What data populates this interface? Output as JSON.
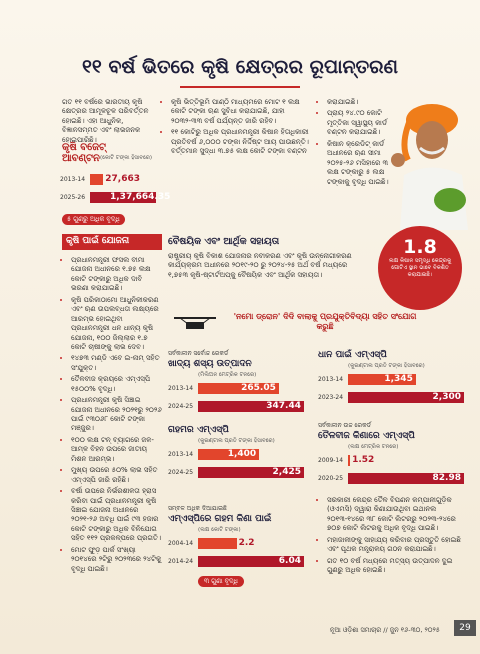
{
  "header": {
    "title": "୧୧ ବର୍ଷ ଭିତରେ କୃଷି କ୍ଷେତ୍ରର ରୂପାନ୍ତରଣ"
  },
  "intro": "ଗତ ୧୧ ବର୍ଷରେ ଭାରତୀୟ କୃଷି କ୍ଷେତ୍ରର ଆମୂଳଚୂଳ ପରିବର୍ତ୍ତନ ହୋଇଛି। ଏହା ଆଧୁନିକ, ବିଜ୍ଞାନସମ୍ମତ ଏବଂ ଲାଭଜନକ ହୋଇପାରିଛି।",
  "budget": {
    "title": "କୃଷି ବଜେଟ୍ ଆବଣ୍ଟନ",
    "unit": "(କୋଟି ଟଙ୍କା ହିସାବରେ)",
    "categories": [
      "2013-14",
      "2025-26"
    ],
    "values": [
      27663,
      137664.35
    ],
    "value_labels": [
      "27,663",
      "1,37,664.35"
    ],
    "note": "୫ ଗୁଣରୁ ଅଧିକ ବୃଦ୍ଧି"
  },
  "col2": [
    "କୃଷି ଭିତ୍ତିଭୂମି ପାଣ୍ଠି ମାଧ୍ୟମରେ ମୋଟ ୧ ଲକ୍ଷ କୋଟି ଟଙ୍କା ଋଣ ସୁବିଧା କରାଯାଇଛି, ଯାହା ୨୦୩୨-୩୩ ବର୍ଷ ପର୍ଯ୍ୟନ୍ତ ଜାରି ରହିବ।",
    "୧୧ କୋଟିରୁ ଅଧିକ ପ୍ରଧାନମନ୍ତ୍ରୀ କିଷାନ ହିତାଧିକାରୀ ପ୍ରତିବର୍ଷ ୬,୦୦୦ ଟଙ୍କା ନିର୍ଦ୍ଦିଷ୍ଟ ଆୟ ପାଉଛନ୍ତି। ବର୍ତ୍ତମାନ ସୁଦ୍ଧା ୩.୭୫ ଲକ୍ଷ କୋଟି ଟଙ୍କା ବଣ୍ଟନ"
  ],
  "col3": [
    "କରାଯାଇଛି।",
    "ପ୍ରାୟ ୨୪.୯୦ କୋଟି ମୃତ୍ତିକା ସ୍ୱାସ୍ଥ୍ୟ କାର୍ଡ ବଣ୍ଟନ କରାଯାଇଛି।",
    "କିଷାନ କ୍ରେଡିଟ୍ କାର୍ଡ ଅଧୀନରେ ଋଣ ସୀମା ୨୦୨୫-୨୬ ମସିହାରେ ୩ ଲକ୍ଷ ଟଙ୍କାରୁ ୫ ଲକ୍ଷ ଟଙ୍କାକୁ ବୃଦ୍ଧି ପାଇଛି।"
  ],
  "schemes": {
    "title": "କୃଷି ପାଇଁ ଯୋଜନା",
    "items": [
      "ପ୍ରଧାନମନ୍ତ୍ରୀ ଫସଲ ବୀମା ଯୋଜନା ଅଧୀନରେ ୧.୭୫ ଲକ୍ଷ କୋଟି ଟଙ୍କାରୁ ଅଧିକ ଦାବି ଭରଣା କରାଯାଇଛି।",
      "କୃଷି ପରିକାଠାମୋ ଆଧୁନିକୀକରଣ ଏବଂ ଋଣ ଉପଲବ୍ଧତା ଲକ୍ଷ୍ୟରେ ଆରମ୍ଭ ହୋଇଥିବା ପ୍ରଧାନମନ୍ତ୍ରୀ ଧନ ଧାନ୍ୟ କୃଷି ଯୋଜନା, ୧୦୦ ଜିଲ୍ଲାର ୧.୭ କୋଟି ଚାଷୀଙ୍କୁ ଲାଭ ଦେବ।",
      "୧୪୭୩ ମଣ୍ଡି ଏବେ ଇ-ନାମ୍ ସହିତ ସଂଯୁକ୍ତ।",
      "ତୈଳବୀଜ କ୍ରୟରେ ଏମ୍‌ଏସ୍‌ପି ୧୫୦୦% ବୃଦ୍ଧି।",
      "ପ୍ରଧାନମନ୍ତ୍ରୀ କୃଷି ସିଞ୍ଚାଇ ଯୋଜନା ଅଧୀନରେ ୨୦୨୧ରୁ ୨୦୨୬ ପାଇଁ ୯୩୦୬୮ କୋଟି ଟଙ୍କା ମଞ୍ଜୁର।",
      "୧୦୦ ଲକ୍ଷ ଟନ୍ ବ୍ୟାଗରେ ଜଳ-ଆମ୍ଳ ବିହନ ଉପରେ ଜାତୀୟ ମିଶନ ଆରମ୍ଭ।",
      "ମୁଖ୍ୟ ଉପରେ ୫୦% ଲାଭ ସହିତ ଏମ୍‌ଏସ୍‌ପି ଜାରି ରହିଛି।",
      "ବର୍ଷା ଉପରେ ନିର୍ଭରଶୀଳତା ହ୍ରାସ କରିବା ପାଇଁ ପ୍ରଧାନମନ୍ତ୍ରୀ କୃଷି ସିଞ୍ଚାଇ ଯୋଜନା ଅଧୀନରେ ୨୦୨୧-୨୬ ଅବଧି ପାଇଁ ୯୩ ହଜାର କୋଟି ଟଙ୍କାରୁ ଅଧିକ ବିନିଯୋଗ ସହିତ ୧୧୨ ପ୍ରକଳ୍ପରେ ପ୍ରଗତି।",
      "ମୋଟ ଫୁଡ଼ ପାର୍କ ସଂଖ୍ୟା ୨୦୧୪ରେ ୨ଟିରୁ ୨୦୨୩ରେ ୨୪ଟିକୁ ବୃଦ୍ଧି ପାଇଛି।"
    ]
  },
  "support": {
    "title": "ବୈଷୟିକ ଏବଂ ଆର୍ଥିକ ସହାୟତା",
    "text": "ରାଷ୍ଟ୍ରୀୟ କୃଷି ବିକାଶ ଯୋଜନାର ନବୀକରଣ ଏବଂ କୃଷି ଉନ୍ନୋଗୀକରଣ କାର୍ଯ୍ୟକ୍ରମ ଅଧୀନରେ ୨୦୧୯-୨୦ ରୁ ୨୦୨୪-୨୫ ଅର୍ଥ ବର୍ଷ ମଧ୍ୟରେ ୧,୭୫୩ କୃଷି-ଷ୍ଟାର୍ଟଅପ୍‌କୁ ବୈଷୟିକ ଏବଂ ଆର୍ଥିକ ସହାୟତା।",
    "highlight": "1.8",
    "highlight_text": "ଲକ୍ଷ କିଷାନ ସମୃଦ୍ଧି କେନ୍ଦ୍ରକୁ ଗୋଟିଏ ସ୍ଥାନ ଭାବେ ବିକଶିତ କରାଯାଇଛି।"
  },
  "drone": "'ନମୋ ଡ୍ରୋନ' ଦିଦି ବାଲାକୁ ପ୍ରଯୁକ୍ତିବିଦ୍ୟା ସହିତ ସଂଯୋଗ କରୁଛି",
  "charts": [
    {
      "pretitle": "ସର୍ବକାଳୀନ ସର୍ବୋଚ୍ଚ ରେକର୍ଡ",
      "title": "ଖାଦ୍ୟ ଶସ୍ୟ ଉତ୍ପାଦନ",
      "unit": "(ମିଲିଅନ ମେଟ୍ରିକ ଟନରେ)",
      "categories": [
        "2013-14",
        "2024-25"
      ],
      "values": [
        265.05,
        347.44
      ],
      "value_labels": [
        "265.05",
        "347.44"
      ]
    },
    {
      "title": "ଧାନ ପାଇଁ ଏମ୍‌ଏସ୍‌ପି",
      "unit": "(କୁଇଣ୍ଟାଲ ପ୍ରତି ଟଙ୍କା ହିସାବରେ)",
      "categories": [
        "2013-14",
        "2023-24"
      ],
      "values": [
        1345,
        2300
      ],
      "value_labels": [
        "1,345",
        "2,300"
      ]
    },
    {
      "title": "ଗହମର ଏମ୍‌ଏସ୍‌ପି",
      "unit": "(କୁଇଣ୍ଟାଲ ପ୍ରତି ଟଙ୍କା ହିସାବରେ)",
      "categories": [
        "2013-14",
        "2024-25"
      ],
      "values": [
        1400,
        2425
      ],
      "value_labels": [
        "1,400",
        "2,425"
      ]
    },
    {
      "pretitle": "ସର୍ବକାଳୀନ ଉଚ୍ଚ ରେକର୍ଡ",
      "title": "ତୈଳବୀଜ କିଣାରେ ଏମ୍‌ଏସ୍‌ପି",
      "unit": "(ଲକ୍ଷ ମେଟ୍ରିକ ଟନରେ)",
      "categories": [
        "2009-14",
        "2020-25"
      ],
      "values": [
        1.52,
        82.98
      ],
      "value_labels": [
        "1.52",
        "82.98"
      ]
    },
    {
      "pretitle": "ସମ୍ବଳ ଅଧିକ ଦିଆଯାଇଛି",
      "title": "ଏମ୍‌ଏସ୍‌ପିରେ ଗହମ କିଣା ପାଇଁ",
      "unit": "(ଲକ୍ଷ କୋଟି ଟଙ୍କା)",
      "categories": [
        "2004-14",
        "2014-24"
      ],
      "values": [
        2.2,
        6.04
      ],
      "value_labels": [
        "2.2",
        "6.04"
      ],
      "note": "୩ ଗୁଣା ବୃଦ୍ଧି"
    }
  ],
  "right_bullets": [
    "ସରକାରୀ କେନ୍ଦ୍ର ତୈଳ ବିପଣନ କମ୍ପାନୀଗୁଡ଼ିକ (ଓଏମସି) ଦ୍ୱାରା କିଣାଯାଉଥିବା ଇଥାନଲ ୨୦୧୩-୧୪ରେ ୩୮ କୋଟି ଲିଟରରୁ ୨୦୨୩-୨୪ରେ ୭୦୭ କୋଟି ଲିଟରକୁ ଅଧିକ ବୃଦ୍ଧି ପାଇଛି।",
    "ମହାଜାଳୀଙ୍କୁ ସାହାଯ୍ୟ କରିବାର ପ୍ରସ୍ତୁତି ହୋଇଛି ଏବଂ ପୃଥକ ମନ୍ତ୍ରାଳୟ ଗଠନ କରାଯାଇଛି।",
    "ଗତ ୧୦ ବର୍ଷ ମଧ୍ୟରେ ମତ୍ସ୍ୟ ଉତ୍ପାଦନ ଦୁଇ ଗୁଣରୁ ଅଧିକ ହୋଇଛି।"
  ],
  "footer": {
    "source": "ନୂଆ ଓଡ଼ିଶା ସମାଚାର // ଜୁନ ୧୬-୩୦, ୨୦୨୫",
    "page": "29"
  }
}
